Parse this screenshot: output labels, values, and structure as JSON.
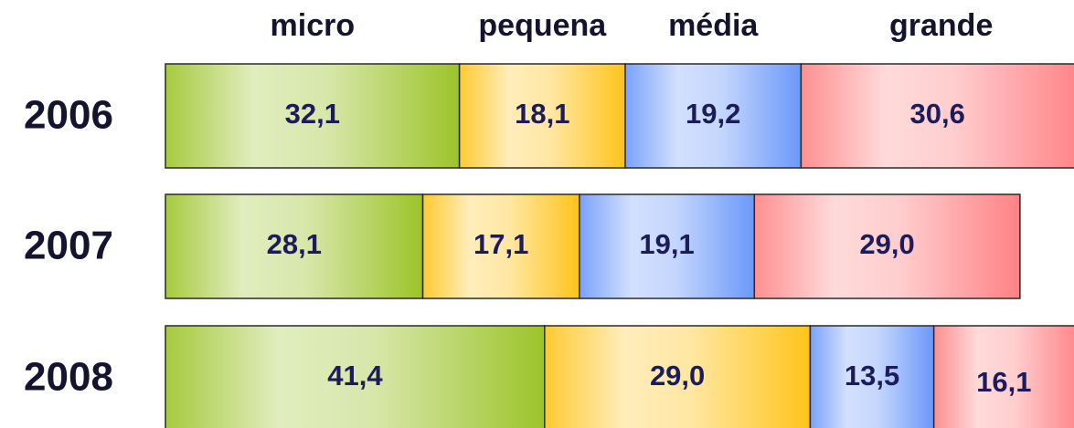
{
  "chart_data": {
    "type": "stacked-barh",
    "categories": [
      "2006",
      "2007",
      "2008"
    ],
    "xlim": [
      0,
      100
    ],
    "series": [
      {
        "name": "micro",
        "color": "#9cc42a",
        "values": [
          32.1,
          28.1,
          41.4
        ],
        "value_labels": [
          "32,1",
          "28,1",
          "41,4"
        ]
      },
      {
        "name": "pequena",
        "color": "#ffc41a",
        "values": [
          18.1,
          17.1,
          29.0
        ],
        "value_labels": [
          "18,1",
          "17,1",
          "29,0"
        ]
      },
      {
        "name": "média",
        "color": "#6b98fa",
        "values": [
          19.2,
          19.1,
          13.5
        ],
        "value_labels": [
          "19,2",
          "19,1",
          "13,5"
        ]
      },
      {
        "name": "grande",
        "color": "#ff8285",
        "values": [
          30.6,
          29.0,
          16.1
        ],
        "value_labels": [
          "30,6",
          "29,0",
          "16,1"
        ]
      }
    ]
  }
}
